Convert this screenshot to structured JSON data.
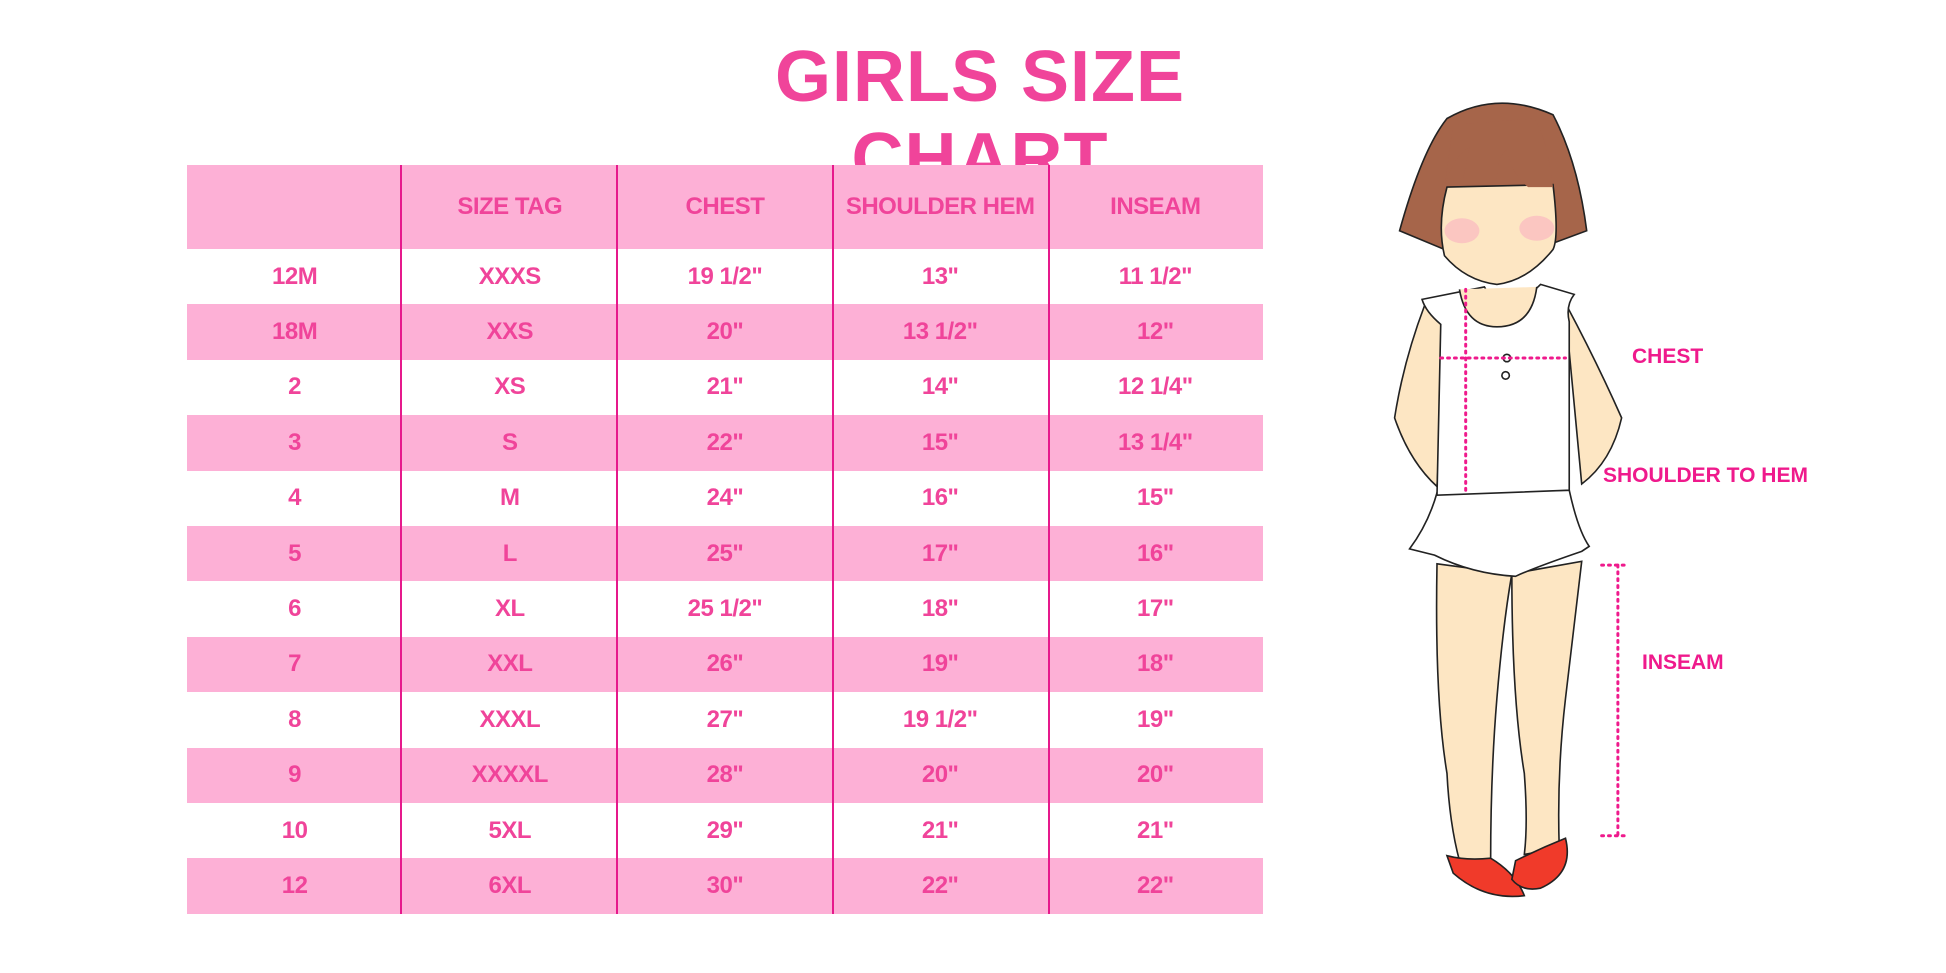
{
  "title": "GIRLS SIZE CHART",
  "table": {
    "headers": [
      "",
      "SIZE TAG",
      "CHEST",
      "SHOULDER HEM",
      "INSEAM"
    ],
    "rows": [
      [
        "12M",
        "XXXS",
        "19 1/2\"",
        "13\"",
        "11 1/2\""
      ],
      [
        "18M",
        "XXS",
        "20\"",
        "13 1/2\"",
        "12\""
      ],
      [
        "2",
        "XS",
        "21\"",
        "14\"",
        "12 1/4\""
      ],
      [
        "3",
        "S",
        "22\"",
        "15\"",
        "13 1/4\""
      ],
      [
        "4",
        "M",
        "24\"",
        "16\"",
        "15\""
      ],
      [
        "5",
        "L",
        "25\"",
        "17\"",
        "16\""
      ],
      [
        "6",
        "XL",
        "25 1/2\"",
        "18\"",
        "17\""
      ],
      [
        "7",
        "XXL",
        "26\"",
        "19\"",
        "18\""
      ],
      [
        "8",
        "XXXL",
        "27\"",
        "19 1/2\"",
        "19\""
      ],
      [
        "9",
        "XXXXL",
        "28\"",
        "20\"",
        "20\""
      ],
      [
        "10",
        "5XL",
        "29\"",
        "21\"",
        "21\""
      ],
      [
        "12",
        "6XL",
        "30\"",
        "22\"",
        "22\""
      ]
    ]
  },
  "figure": {
    "labels": {
      "chest": "CHEST",
      "shoulder": "SHOULDER TO HEM",
      "inseam": "INSEAM"
    }
  },
  "colors": {
    "accent": "#f0449a",
    "row_pink": "#fdb0d6",
    "divider": "#e6198c",
    "hair": "#a6654a",
    "skin": "#fde6c3",
    "shoe": "#f03a2a"
  }
}
